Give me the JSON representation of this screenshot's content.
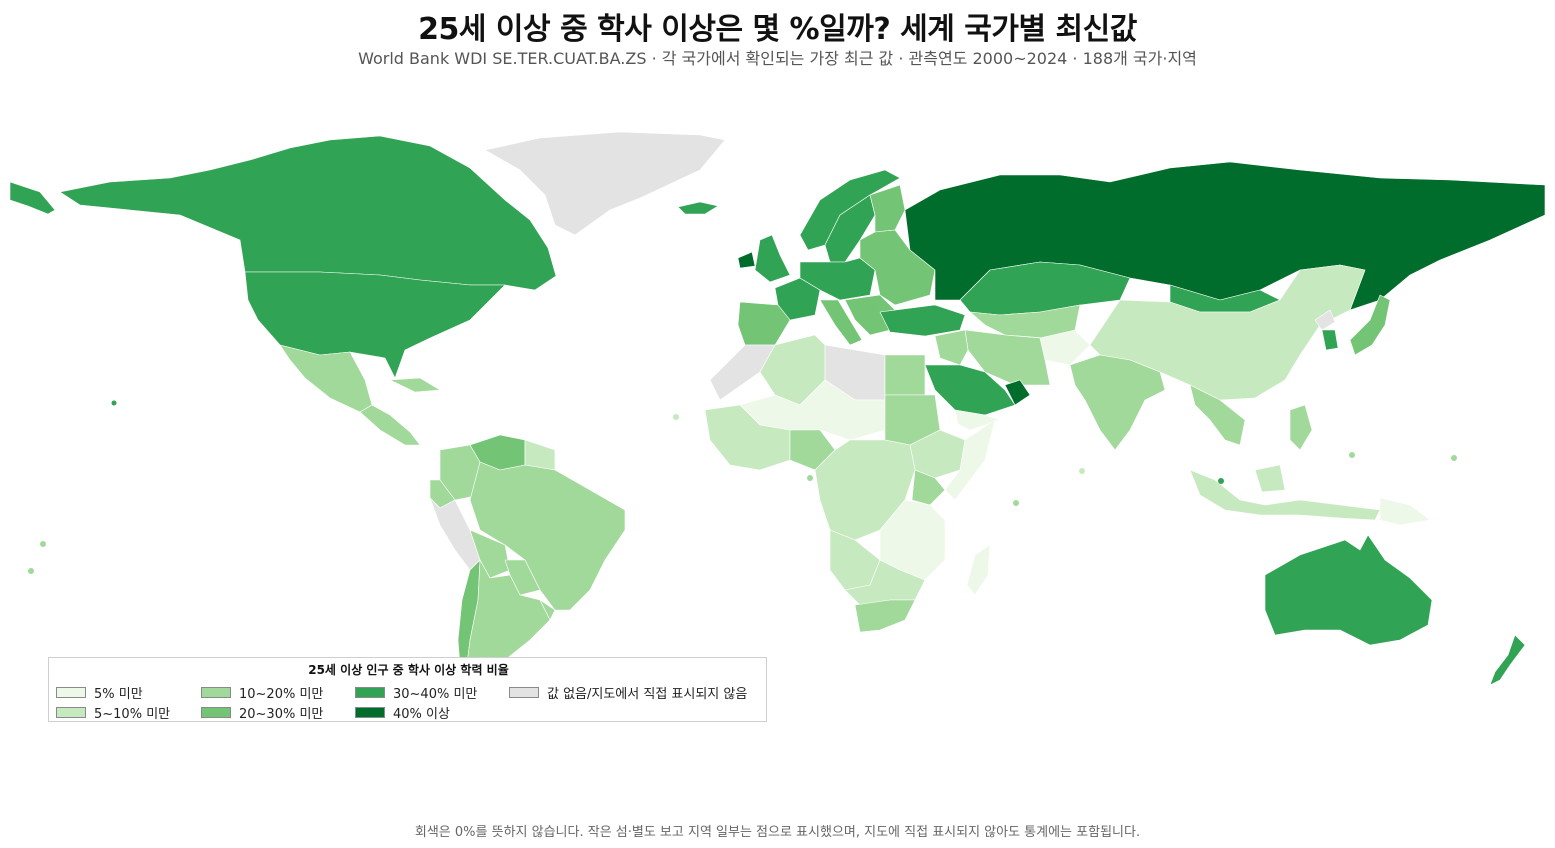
{
  "title": "25세 이상 중 학사 이상은 몇 %일까? 세계 국가별 최신값",
  "subtitle": "World Bank WDI SE.TER.CUAT.BA.ZS · 각 국가에서 확인되는 가장 최근 값 · 관측연도 2000~2024 · 188개 국가·지역",
  "footnote": "회색은 0%를 뜻하지 않습니다. 작은 섬·별도 보고 지역 일부는 점으로 표시했으며, 지도에 직접 표시되지 않아도 통계에는 포함됩니다.",
  "legend": {
    "title": "25세 이상 인구 중 학사 이상 학력 비율",
    "items": [
      {
        "label": "5% 미만",
        "color": "#edf8e9"
      },
      {
        "label": "5~10% 미만",
        "color": "#c7e9c0"
      },
      {
        "label": "10~20% 미만",
        "color": "#a1d99b"
      },
      {
        "label": "20~30% 미만",
        "color": "#74c476"
      },
      {
        "label": "30~40% 미만",
        "color": "#31a354"
      },
      {
        "label": "40% 이상",
        "color": "#006d2c"
      },
      {
        "label": "값 없음/지도에서 직접 표시되지 않음",
        "color": "#e3e3e3"
      }
    ]
  },
  "regions": [
    {
      "name": "Canada",
      "bin": 4
    },
    {
      "name": "United States",
      "bin": 4
    },
    {
      "name": "Alaska",
      "bin": 4
    },
    {
      "name": "Greenland",
      "bin": 6
    },
    {
      "name": "Mexico",
      "bin": 2
    },
    {
      "name": "Central America",
      "bin": 2
    },
    {
      "name": "Cuba",
      "bin": 2
    },
    {
      "name": "Venezuela",
      "bin": 3
    },
    {
      "name": "Colombia",
      "bin": 2
    },
    {
      "name": "Guyana",
      "bin": 1
    },
    {
      "name": "Ecuador",
      "bin": 2
    },
    {
      "name": "Peru",
      "bin": 6
    },
    {
      "name": "Brazil",
      "bin": 2
    },
    {
      "name": "Bolivia",
      "bin": 2
    },
    {
      "name": "Paraguay",
      "bin": 2
    },
    {
      "name": "Chile",
      "bin": 3
    },
    {
      "name": "Argentina",
      "bin": 2
    },
    {
      "name": "Uruguay",
      "bin": 2
    },
    {
      "name": "Iceland",
      "bin": 4
    },
    {
      "name": "Norway",
      "bin": 4
    },
    {
      "name": "Sweden",
      "bin": 4
    },
    {
      "name": "Finland",
      "bin": 3
    },
    {
      "name": "United Kingdom",
      "bin": 4
    },
    {
      "name": "Ireland",
      "bin": 5
    },
    {
      "name": "France",
      "bin": 4
    },
    {
      "name": "Iberia",
      "bin": 3
    },
    {
      "name": "Central Europe",
      "bin": 4
    },
    {
      "name": "Italy",
      "bin": 3
    },
    {
      "name": "Eastern Europe",
      "bin": 3
    },
    {
      "name": "Balkans",
      "bin": 3
    },
    {
      "name": "Turkey",
      "bin": 4
    },
    {
      "name": "Russia",
      "bin": 5
    },
    {
      "name": "Kazakhstan",
      "bin": 4
    },
    {
      "name": "Mongolia",
      "bin": 4
    },
    {
      "name": "Central Asia",
      "bin": 2
    },
    {
      "name": "Afghanistan",
      "bin": 0
    },
    {
      "name": "Iran",
      "bin": 2
    },
    {
      "name": "Iraq",
      "bin": 2
    },
    {
      "name": "Saudi Arabia",
      "bin": 4
    },
    {
      "name": "Gulf",
      "bin": 5
    },
    {
      "name": "Yemen",
      "bin": 0
    },
    {
      "name": "China",
      "bin": 1
    },
    {
      "name": "North Korea",
      "bin": 6
    },
    {
      "name": "South Korea",
      "bin": 4
    },
    {
      "name": "Japan",
      "bin": 3
    },
    {
      "name": "India",
      "bin": 2
    },
    {
      "name": "Southeast Asia",
      "bin": 2
    },
    {
      "name": "Indonesia",
      "bin": 1
    },
    {
      "name": "Philippines",
      "bin": 2
    },
    {
      "name": "Papua New Guinea",
      "bin": 0
    },
    {
      "name": "Australia",
      "bin": 4
    },
    {
      "name": "New Zealand",
      "bin": 4
    },
    {
      "name": "Morocco",
      "bin": 6
    },
    {
      "name": "Algeria",
      "bin": 1
    },
    {
      "name": "Libya",
      "bin": 6
    },
    {
      "name": "Egypt",
      "bin": 2
    },
    {
      "name": "Sudan",
      "bin": 2
    },
    {
      "name": "Sahel",
      "bin": 0
    },
    {
      "name": "Nigeria",
      "bin": 2
    },
    {
      "name": "West Africa",
      "bin": 1
    },
    {
      "name": "Ethiopia",
      "bin": 1
    },
    {
      "name": "Somalia",
      "bin": 0
    },
    {
      "name": "Kenya",
      "bin": 2
    },
    {
      "name": "Central Africa",
      "bin": 1
    },
    {
      "name": "East Africa",
      "bin": 0
    },
    {
      "name": "Angola",
      "bin": 1
    },
    {
      "name": "Southern Africa",
      "bin": 1
    },
    {
      "name": "South Africa",
      "bin": 2
    },
    {
      "name": "Madagascar",
      "bin": 0
    }
  ]
}
